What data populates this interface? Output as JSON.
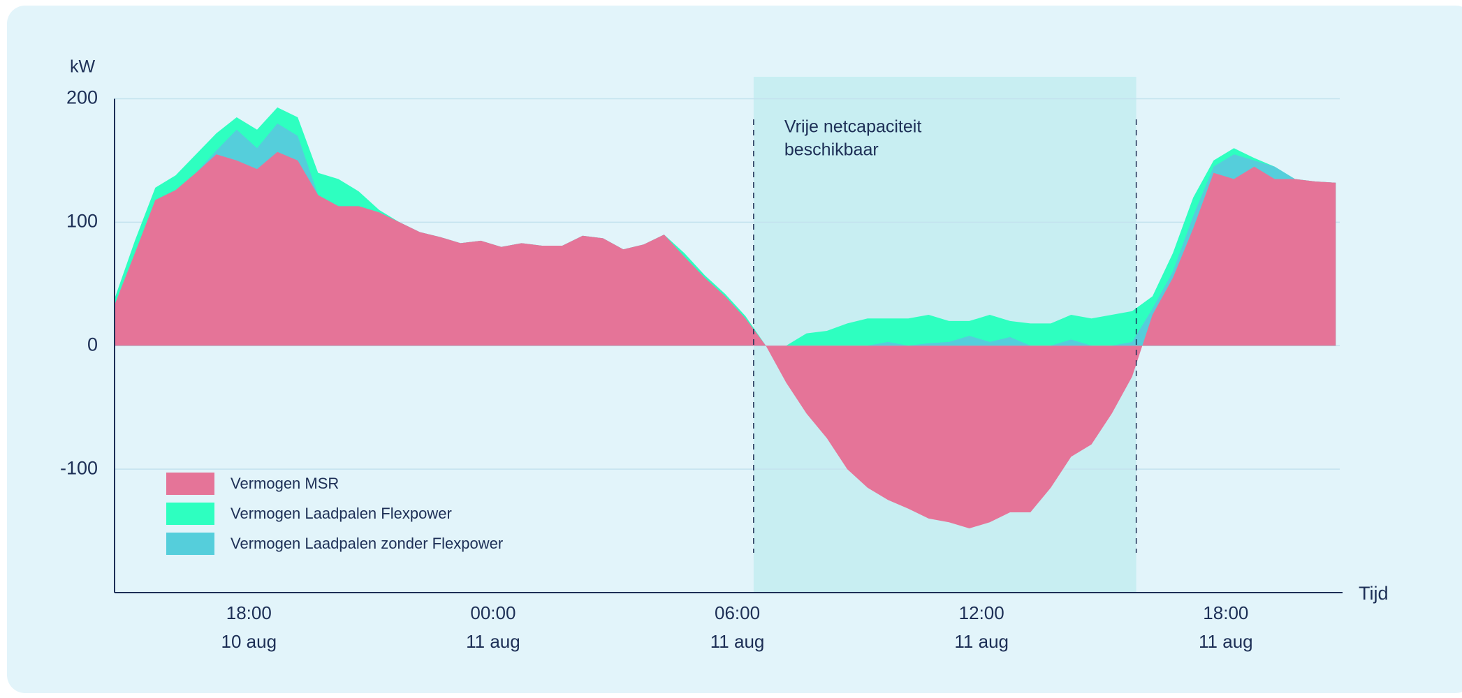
{
  "chart_data": {
    "type": "area",
    "y_unit": "kW",
    "x_label": "Tijd",
    "x": [
      14.7,
      15.2,
      15.7,
      16.2,
      16.7,
      17.2,
      17.7,
      18.2,
      18.7,
      19.2,
      19.7,
      20.2,
      20.7,
      21.2,
      21.7,
      22.2,
      22.7,
      23.2,
      23.7,
      24.2,
      24.7,
      25.2,
      25.7,
      26.2,
      26.7,
      27.2,
      27.7,
      28.2,
      28.7,
      29.2,
      29.7,
      30.2,
      30.7,
      31.2,
      31.7,
      32.2,
      32.7,
      33.2,
      33.7,
      34.2,
      34.7,
      35.2,
      35.7,
      36.2,
      36.7,
      37.2,
      37.7,
      38.2,
      38.7,
      39.2,
      39.7,
      40.2,
      40.7,
      41.2,
      41.7,
      42.2,
      42.7,
      43.2,
      43.7,
      44.2,
      44.7
    ],
    "series": [
      {
        "name": "Vermogen MSR",
        "color": "#e57498",
        "values": [
          33,
          75,
          118,
          126,
          140,
          155,
          150,
          143,
          157,
          150,
          122,
          113,
          113,
          108,
          100,
          92,
          88,
          83,
          85,
          80,
          83,
          81,
          81,
          89,
          87,
          78,
          82,
          90,
          72,
          55,
          40,
          22,
          0,
          -30,
          -55,
          -75,
          -100,
          -115,
          -125,
          -132,
          -140,
          -143,
          -148,
          -143,
          -135,
          -135,
          -115,
          -90,
          -80,
          -55,
          -25,
          25,
          55,
          95,
          140,
          135,
          145,
          135,
          135,
          133,
          132
        ]
      },
      {
        "name": "Vermogen Laadpalen Flexpower",
        "color": "#2effc0",
        "values": [
          38,
          85,
          128,
          138,
          155,
          172,
          185,
          175,
          193,
          185,
          140,
          135,
          125,
          110,
          100,
          92,
          88,
          83,
          85,
          80,
          83,
          81,
          81,
          89,
          87,
          78,
          82,
          90,
          75,
          57,
          42,
          24,
          0,
          0,
          10,
          12,
          18,
          22,
          22,
          22,
          25,
          20,
          20,
          25,
          20,
          18,
          18,
          25,
          22,
          25,
          28,
          40,
          75,
          120,
          150,
          160,
          152,
          145,
          135,
          133,
          132
        ]
      },
      {
        "name": "Vermogen Laadpalen zonder Flexpower",
        "color": "#55cedb",
        "values": [
          33,
          75,
          118,
          126,
          140,
          158,
          175,
          160,
          180,
          170,
          122,
          113,
          113,
          108,
          100,
          92,
          88,
          83,
          85,
          80,
          83,
          81,
          81,
          89,
          87,
          78,
          82,
          90,
          72,
          55,
          40,
          22,
          0,
          0,
          0,
          0,
          0,
          0,
          3,
          0,
          2,
          3,
          8,
          3,
          7,
          0,
          0,
          5,
          0,
          0,
          3,
          30,
          60,
          105,
          145,
          155,
          150,
          145,
          135,
          133,
          132
        ]
      }
    ],
    "xlim": [
      14.7,
      44.8
    ],
    "xticks": [
      {
        "value": 18,
        "label": "18:00"
      },
      {
        "value": 24,
        "label": "00:00"
      },
      {
        "value": 30,
        "label": "06:00"
      },
      {
        "value": 36,
        "label": "12:00"
      },
      {
        "value": 42,
        "label": "18:00"
      }
    ],
    "xtick_dates": [
      "10 aug",
      "11 aug",
      "11 aug",
      "11 aug",
      "11 aug"
    ],
    "ylim": [
      -200,
      200
    ],
    "yticks": [
      -100,
      0,
      100,
      200
    ],
    "grid": true,
    "highlight": {
      "x": [
        30.4,
        39.8
      ],
      "label": [
        "Vrije netcapaciteit",
        "beschikbaar"
      ],
      "color": "#c8eef2"
    },
    "legend": "bottom-left"
  }
}
